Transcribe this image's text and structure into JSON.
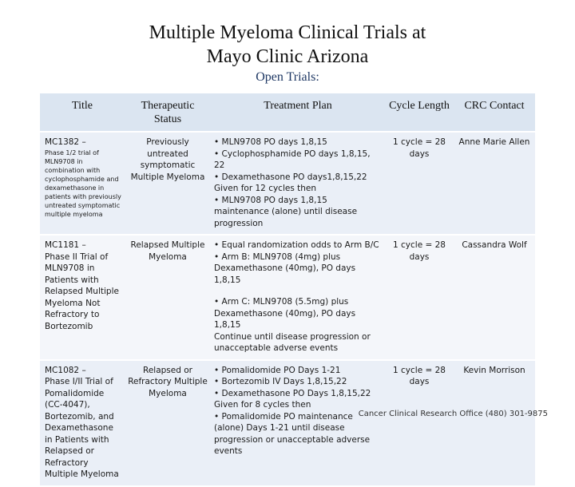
{
  "title_line1": "Multiple Myeloma Clinical Trials at",
  "title_line2": "Mayo Clinic Arizona",
  "subtitle": "Open Trials:",
  "headers": {
    "title": "Title",
    "status": "Therapeutic Status",
    "plan": "Treatment Plan",
    "cycle": "Cycle Length",
    "contact": "CRC Contact"
  },
  "trials": [
    {
      "id": "MC1382 –",
      "description": "Phase 1/2 trial of MLN9708 in combination with cyclophosphamide and dexamethasone in patients with previously untreated symptomatic multiple myeloma",
      "status": "Previously untreated symptomatic Multiple Myeloma",
      "plan": [
        "• MLN9708 PO days 1,8,15",
        "• Cyclophosphamide PO days 1,8,15, 22",
        "• Dexamethasone PO days1,8,15,22",
        "Given for 12 cycles then",
        "• MLN9708 PO days 1,8,15 maintenance (alone) until disease progression"
      ],
      "cycle": "1 cycle = 28 days",
      "contact": "Anne Marie Allen"
    },
    {
      "id": "MC1181 –",
      "description": "Phase II Trial of MLN9708 in Patients with Relapsed Multiple Myeloma Not Refractory to Bortezomib",
      "status": "Relapsed Multiple Myeloma",
      "plan_a": [
        "• Equal randomization odds to Arm B/C",
        "• Arm B: MLN9708 (4mg) plus Dexamethasone (40mg), PO days 1,8,15"
      ],
      "plan_b": [
        "• Arm C: MLN9708 (5.5mg) plus Dexamethasone (40mg), PO days 1,8,15",
        "Continue until disease progression or unacceptable adverse events"
      ],
      "cycle": "1 cycle = 28 days",
      "contact": "Cassandra Wolf"
    },
    {
      "id": "MC1082 –",
      "description": "Phase I/II Trial of Pomalidomide (CC-4047), Bortezomib, and Dexamethasone in Patients with Relapsed or Refractory Multiple Myeloma",
      "status": "Relapsed or Refractory Multiple Myeloma",
      "plan": [
        "• Pomalidomide PO Days 1-21",
        "• Bortezomib IV Days 1,8,15,22",
        "• Dexamethasone PO Days 1,8,15,22",
        "Given for 8 cycles then",
        "• Pomalidomide PO maintenance (alone) Days 1-21 until disease progression or unacceptable adverse events"
      ],
      "cycle": "1 cycle = 28 days",
      "contact": "Kevin Morrison"
    }
  ],
  "footer": "Cancer Clinical Research Office (480) 301-9875"
}
